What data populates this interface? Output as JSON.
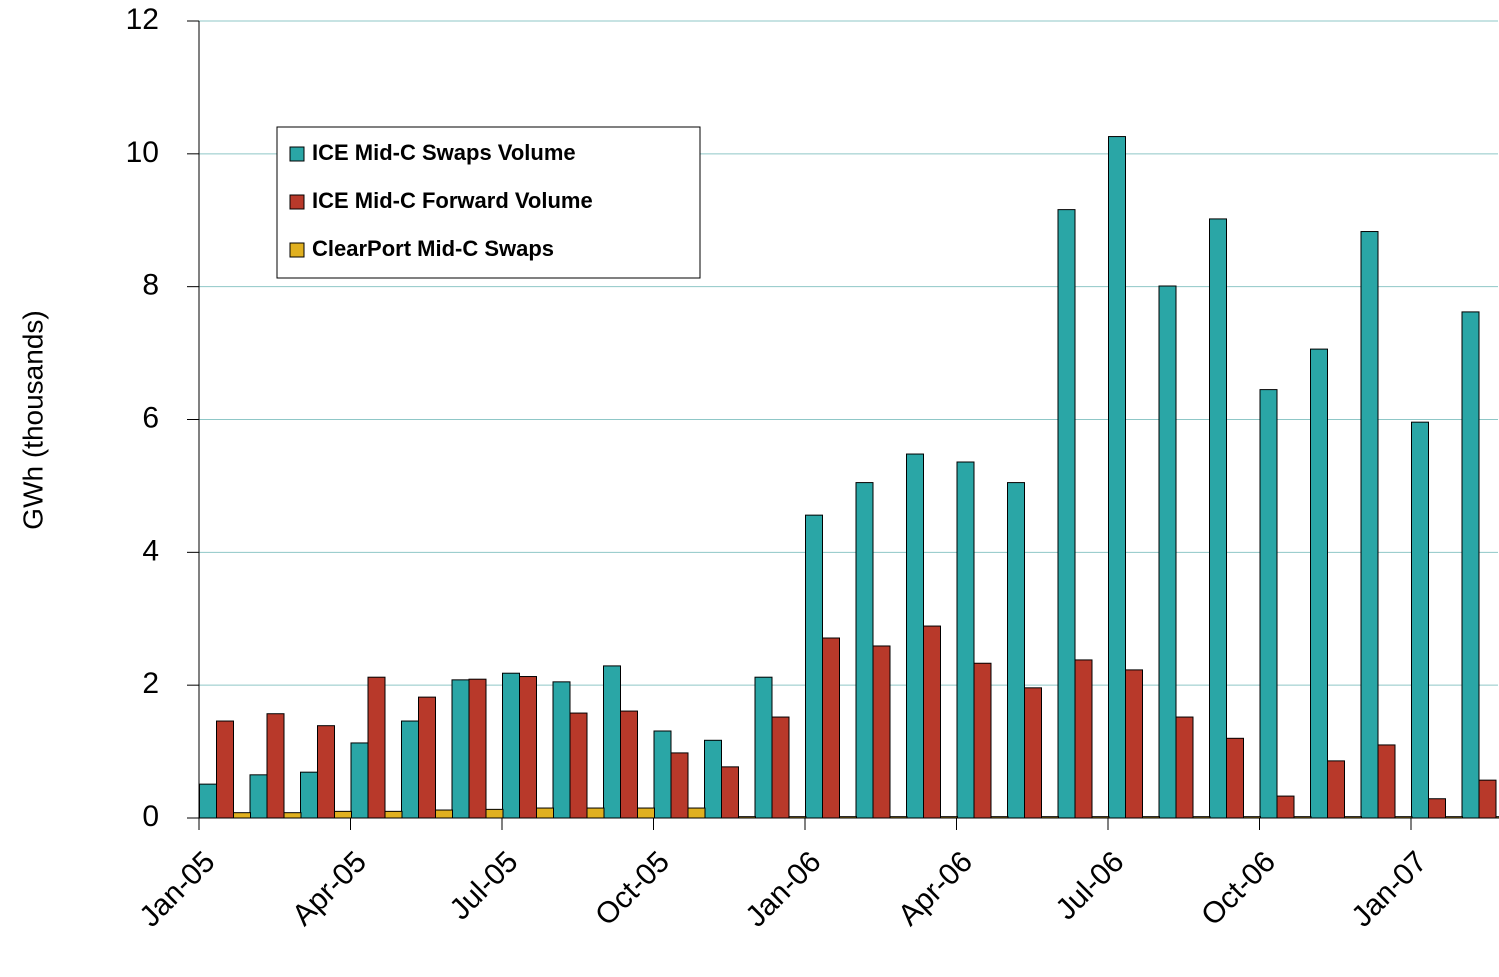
{
  "chart_data": {
    "type": "bar",
    "y_label": "GWh (thousands)",
    "categories": [
      "Jan-05",
      null,
      null,
      "Apr-05",
      null,
      null,
      "Jul-05",
      null,
      null,
      "Oct-05",
      null,
      null,
      "Jan-06",
      null,
      null,
      "Apr-06",
      null,
      null,
      "Jul-06",
      null,
      null,
      "Oct-06",
      null,
      null,
      "Jan-07",
      null
    ],
    "series": [
      {
        "name": "ICE Mid-C Swaps Volume",
        "color": "#2aa6a6",
        "values": [
          0.51,
          0.65,
          0.69,
          1.13,
          1.46,
          2.08,
          2.18,
          2.05,
          2.29,
          1.31,
          1.17,
          2.12,
          4.56,
          5.05,
          5.48,
          5.36,
          5.05,
          9.16,
          10.26,
          8.01,
          9.02,
          6.45,
          7.06,
          8.83,
          5.96,
          7.62
        ]
      },
      {
        "name": "ICE Mid-C Forward Volume",
        "color": "#b8392a",
        "values": [
          1.46,
          1.57,
          1.39,
          2.12,
          1.82,
          2.09,
          2.13,
          1.58,
          1.61,
          0.98,
          0.77,
          1.52,
          2.71,
          2.59,
          2.89,
          2.33,
          1.96,
          2.38,
          2.23,
          1.52,
          1.2,
          0.33,
          0.86,
          1.1,
          0.29,
          0.57
        ]
      },
      {
        "name": "ClearPort Mid-C Swaps",
        "color": "#e0b020",
        "values": [
          0.08,
          0.08,
          0.1,
          0.1,
          0.12,
          0.13,
          0.15,
          0.15,
          0.15,
          0.15,
          0.02,
          0.02,
          0.02,
          0.02,
          0.02,
          0.02,
          0.02,
          0.02,
          0.02,
          0.02,
          0.02,
          0.02,
          0.02,
          0.02,
          0.02,
          0.02
        ]
      }
    ],
    "ylim": [
      0,
      12
    ],
    "yticks": [
      0,
      2,
      4,
      6,
      8,
      10,
      12
    ],
    "grid": true
  }
}
